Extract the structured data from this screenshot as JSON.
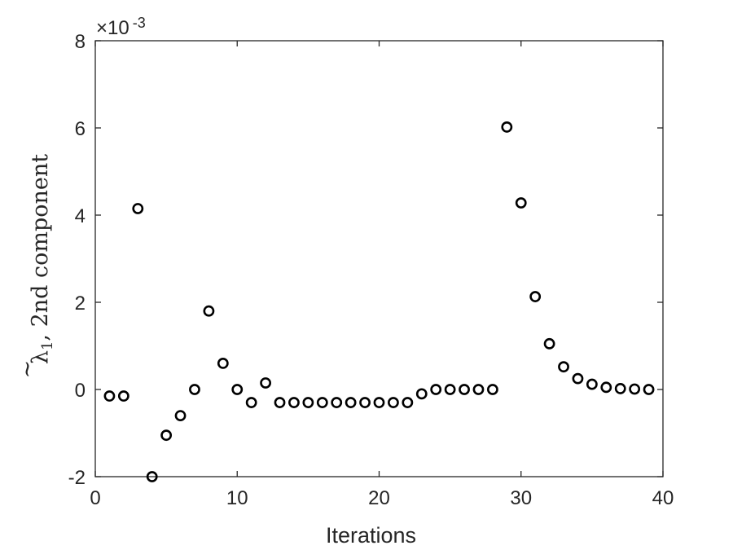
{
  "chart_data": {
    "type": "scatter",
    "xlabel": "Iterations",
    "ylabel": {
      "symbol": "λ",
      "tilde": "~",
      "subscript": "1",
      "suffix": ", 2nd component"
    },
    "y_multiplier": {
      "prefix": "×10",
      "exponent": "-3"
    },
    "xlim": [
      0,
      40
    ],
    "ylim": [
      -2,
      8
    ],
    "x_ticks": [
      0,
      10,
      20,
      30,
      40
    ],
    "y_ticks": [
      -2,
      0,
      2,
      4,
      6,
      8
    ],
    "x_tick_labels": [
      "0",
      "10",
      "20",
      "30",
      "40"
    ],
    "y_tick_labels": [
      "-2",
      "0",
      "2",
      "4",
      "6",
      "8"
    ],
    "marker": "open-circle",
    "marker_color": "#000000",
    "grid": false,
    "series": [
      {
        "x": [
          1,
          2,
          3,
          4,
          5,
          6,
          7,
          8,
          9,
          10,
          11,
          12,
          13,
          14,
          15,
          16,
          17,
          18,
          19,
          20,
          21,
          22,
          23,
          24,
          25,
          26,
          27,
          28,
          29,
          30,
          31,
          32,
          33,
          34,
          35,
          36,
          37,
          38,
          39
        ],
        "y": [
          -0.15,
          -0.15,
          4.15,
          -2.0,
          -1.05,
          -0.6,
          0.0,
          1.8,
          0.6,
          0.0,
          -0.3,
          0.15,
          -0.3,
          -0.3,
          -0.3,
          -0.3,
          -0.3,
          -0.3,
          -0.3,
          -0.3,
          -0.3,
          -0.3,
          -0.1,
          0.0,
          0.0,
          0.0,
          0.0,
          0.0,
          6.02,
          4.28,
          2.13,
          1.05,
          0.52,
          0.25,
          0.12,
          0.05,
          0.02,
          0.01,
          0.0
        ]
      }
    ]
  }
}
